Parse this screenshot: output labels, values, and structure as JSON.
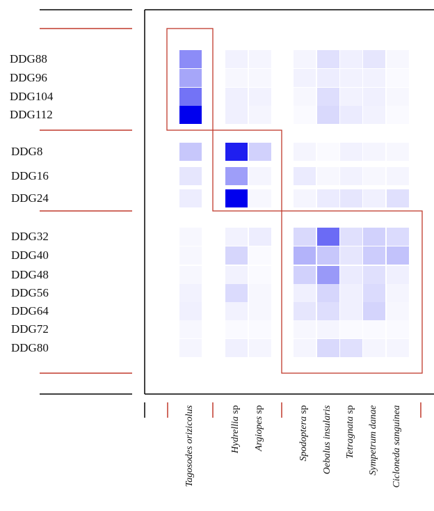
{
  "chart_data": {
    "type": "heatmap",
    "title": "",
    "xlabel": "",
    "ylabel": "",
    "colors": {
      "max": "#0000ee",
      "min": "#ffffff",
      "group_lines": "#c0392b",
      "frame": "#000000"
    },
    "row_groups": [
      [
        "DDG88",
        "DDG96",
        "DDG104",
        "DDG112"
      ],
      [
        "DDG8",
        "DDG16",
        "DDG24"
      ],
      [
        "DDG32",
        "DDG40",
        "DDG48",
        "DDG56",
        "DDG64",
        "DDG72",
        "DDG80"
      ]
    ],
    "columns": [
      {
        "label": "Tagosodes orizicolus",
        "group": 0
      },
      {
        "label": "Hydrellia",
        "suffix": "sp",
        "group": 1
      },
      {
        "label": "Argiopes",
        "suffix": "sp",
        "group": 1
      },
      {
        "label": "Spodoptera",
        "suffix": "sp",
        "group": 2
      },
      {
        "label": "Oebalus insularis",
        "group": 2
      },
      {
        "label": "Tetragnata",
        "suffix": "sp",
        "group": 2
      },
      {
        "label": "Sympetrum danae",
        "group": 2
      },
      {
        "label": "Cicloneda sanguinea",
        "group": 2
      }
    ],
    "values": [
      [
        0.45,
        0.05,
        0.04,
        0.04,
        0.12,
        0.06,
        0.1,
        0.03
      ],
      [
        0.35,
        0.03,
        0.03,
        0.05,
        0.07,
        0.05,
        0.05,
        0.02
      ],
      [
        0.55,
        0.06,
        0.05,
        0.03,
        0.13,
        0.05,
        0.06,
        0.03
      ],
      [
        1.0,
        0.06,
        0.04,
        0.02,
        0.15,
        0.08,
        0.05,
        0.02
      ],
      [
        0.22,
        0.88,
        0.18,
        0.04,
        0.02,
        0.05,
        0.04,
        0.03
      ],
      [
        0.1,
        0.38,
        0.04,
        0.08,
        0.03,
        0.05,
        0.03,
        0.04
      ],
      [
        0.07,
        1.0,
        0.03,
        0.04,
        0.08,
        0.1,
        0.06,
        0.12
      ],
      [
        0.03,
        0.05,
        0.07,
        0.15,
        0.58,
        0.12,
        0.18,
        0.14
      ],
      [
        0.03,
        0.16,
        0.02,
        0.3,
        0.22,
        0.1,
        0.2,
        0.24
      ],
      [
        0.03,
        0.05,
        0.02,
        0.18,
        0.4,
        0.08,
        0.12,
        0.06
      ],
      [
        0.05,
        0.14,
        0.03,
        0.06,
        0.16,
        0.06,
        0.14,
        0.04
      ],
      [
        0.06,
        0.05,
        0.03,
        0.1,
        0.13,
        0.06,
        0.17,
        0.03
      ],
      [
        0.03,
        0.02,
        0.02,
        0.03,
        0.04,
        0.02,
        0.02,
        0.02
      ],
      [
        0.04,
        0.06,
        0.04,
        0.04,
        0.15,
        0.12,
        0.04,
        0.04
      ]
    ]
  }
}
